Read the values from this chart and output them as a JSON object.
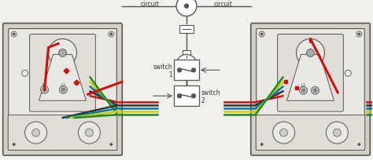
{
  "bg_color": "#f2f0eb",
  "figsize": [
    4.74,
    2.05
  ],
  "dpi": 100,
  "text_circuit_left": "circuit",
  "text_circuit_right": "circuit",
  "text_switch1": "switch\n1",
  "text_switch2": "switch\n2",
  "lc": "#555555",
  "box_outer_color": "#d4d0c8",
  "box_inner_color": "#eae8e2",
  "plate_color": "#e0ddd6",
  "wire_red": "#cc1111",
  "wire_orange": "#dd6600",
  "wire_yellow": "#cccc00",
  "wire_green": "#228822",
  "wire_blue": "#0077aa",
  "wire_black": "#333333",
  "wire_gray": "#888888"
}
